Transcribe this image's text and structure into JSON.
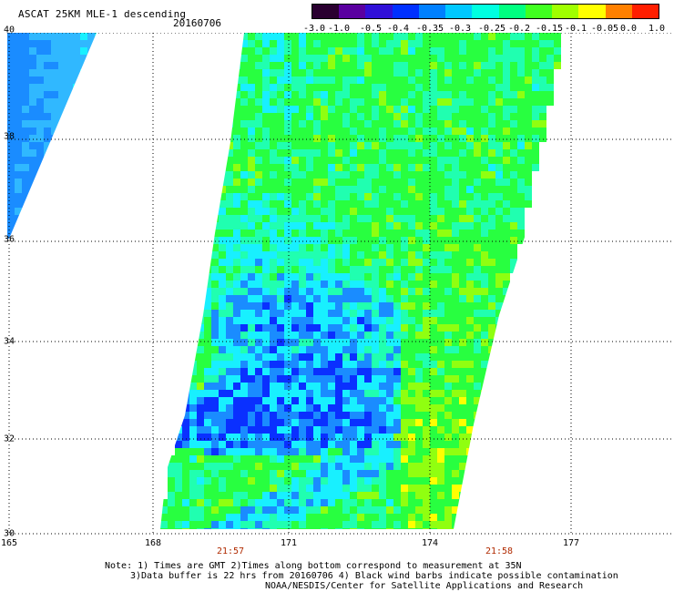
{
  "header": {
    "title": "ASCAT 25KM MLE-1 descending",
    "date": "20160706"
  },
  "colorbar": {
    "labels": [
      "-3.0",
      "-1.0",
      "-0.5",
      "-0.4",
      "-0.35",
      "-0.3",
      "-0.25",
      "-0.2",
      "-0.15",
      "-0.1",
      "-0.05",
      "0.0",
      "1.0"
    ],
    "colors": [
      "#2a0030",
      "#5a00a0",
      "#3010d8",
      "#0030ff",
      "#0080ff",
      "#00c8ff",
      "#00ffe0",
      "#00ff80",
      "#40ff20",
      "#a0ff00",
      "#ffff00",
      "#ff8000",
      "#ff1e00"
    ]
  },
  "axes": {
    "lat_labels": [
      "40",
      "38",
      "36",
      "34",
      "32",
      "30"
    ],
    "lon_labels": [
      "165",
      "168",
      "171",
      "174",
      "177"
    ],
    "time_labels": [
      "21:57",
      "21:58"
    ]
  },
  "notes": {
    "line1": "Note: 1) Times are GMT 2)Times along bottom correspond to measurement at 35N",
    "line2": "3)Data buffer is 22 hrs from 20160706 4) Black wind barbs indicate possible contamination",
    "line3": "NOAA/NESDIS/Center for Satellite Applications and Research"
  },
  "map": {
    "swath_colors": {
      "low": "#0a30ff",
      "midlow": "#1a8cff",
      "cyan": "#18f0ff",
      "aqua": "#20ffb0",
      "green": "#28ff40",
      "lime": "#90ff10",
      "yellow": "#ffff00"
    }
  }
}
